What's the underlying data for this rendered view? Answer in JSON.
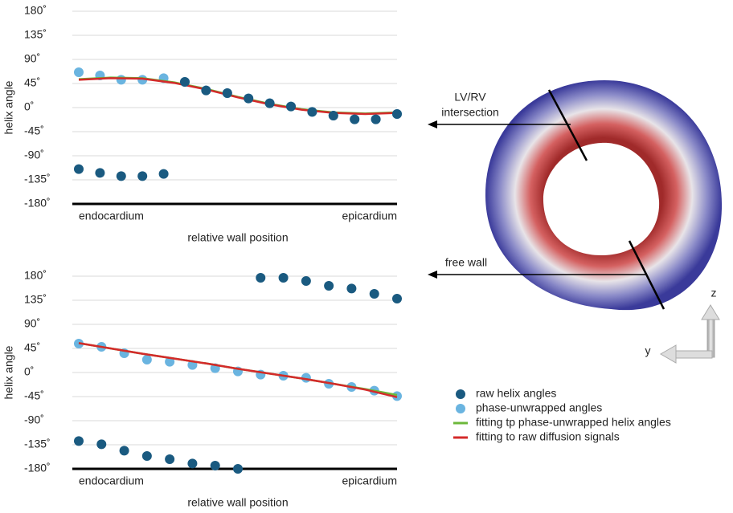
{
  "chart_data": [
    {
      "type": "scatter",
      "ylabel": "helix angle",
      "xlabel": "relative wall position",
      "xlim": [
        0,
        1
      ],
      "xticks": [
        {
          "value": 0,
          "label": "endocardium"
        },
        {
          "value": 1,
          "label": "epicardium"
        }
      ],
      "ylim": [
        -180,
        180
      ],
      "yticks": [
        {
          "value": 180,
          "label": "180˚"
        },
        {
          "value": 135,
          "label": "135˚"
        },
        {
          "value": 90,
          "label": "90˚"
        },
        {
          "value": 45,
          "label": "45˚"
        },
        {
          "value": 0,
          "label": "0˚"
        },
        {
          "value": -45,
          "label": "-45˚"
        },
        {
          "value": -90,
          "label": "-90˚"
        },
        {
          "value": -135,
          "label": "-135˚"
        },
        {
          "value": -180,
          "label": "-180˚"
        }
      ],
      "grid": true,
      "x": [
        0,
        0.0667,
        0.1333,
        0.2,
        0.2667,
        0.3333,
        0.4,
        0.4667,
        0.5333,
        0.6,
        0.6667,
        0.7333,
        0.8,
        0.8667,
        0.9333,
        1
      ],
      "series": [
        {
          "style": "markers",
          "color": "#6ab4e0",
          "values": [
            66,
            60,
            52,
            52,
            55,
            48,
            32,
            27,
            17,
            8,
            2,
            -8,
            -15,
            -22,
            -22,
            -12
          ]
        },
        {
          "style": "line",
          "color": "#6cb83a",
          "x": [
            0,
            0.1,
            0.2,
            0.3,
            0.4,
            0.5,
            0.6,
            0.7,
            0.8,
            0.9,
            1
          ],
          "values": [
            53,
            56,
            55,
            47,
            35,
            20,
            7,
            -3,
            -9,
            -11,
            -9
          ]
        },
        {
          "style": "line",
          "color": "#d42a2a",
          "x": [
            0,
            0.1,
            0.2,
            0.3,
            0.4,
            0.5,
            0.6,
            0.7,
            0.8,
            0.9,
            1
          ],
          "values": [
            52,
            55,
            54,
            46,
            34,
            19,
            6,
            -4,
            -10,
            -12,
            -10
          ]
        },
        {
          "style": "markers",
          "color": "#1a5a80",
          "values": [
            -115,
            -122,
            -128,
            -128,
            -124,
            48,
            32,
            27,
            17,
            8,
            2,
            -8,
            -15,
            -22,
            -22,
            -12
          ]
        }
      ]
    },
    {
      "type": "scatter",
      "ylabel": "helix angle",
      "xlabel": "relative wall position",
      "xlim": [
        0,
        1
      ],
      "xticks": [
        {
          "value": 0,
          "label": "endocardium"
        },
        {
          "value": 1,
          "label": "epicardium"
        }
      ],
      "ylim": [
        -180,
        180
      ],
      "yticks": [
        {
          "value": 180,
          "label": "180˚"
        },
        {
          "value": 135,
          "label": "135˚"
        },
        {
          "value": 90,
          "label": "90˚"
        },
        {
          "value": 45,
          "label": "45˚"
        },
        {
          "value": 0,
          "label": "0˚"
        },
        {
          "value": -45,
          "label": "-45˚"
        },
        {
          "value": -90,
          "label": "-90˚"
        },
        {
          "value": -135,
          "label": "-135˚"
        },
        {
          "value": -180,
          "label": "-180˚"
        }
      ],
      "grid": true,
      "x": [
        0,
        0.0714,
        0.1429,
        0.2143,
        0.2857,
        0.3571,
        0.4286,
        0.5,
        0.5714,
        0.6429,
        0.7143,
        0.7857,
        0.8571,
        0.9286,
        1
      ],
      "series": [
        {
          "name": "raw helix angles",
          "style": "markers",
          "color": "#1a5a80",
          "values": [
            -128,
            -134,
            -146,
            -156,
            -162,
            -170,
            -174,
            -180,
            177,
            177,
            171,
            162,
            157,
            147,
            138
          ]
        },
        {
          "name": "phase-unwrapped angles",
          "style": "markers",
          "color": "#6ab4e0",
          "values": [
            54,
            48,
            36,
            24,
            20,
            14,
            8,
            2,
            -4,
            -6,
            -10,
            -21,
            -27,
            -34,
            -44
          ]
        },
        {
          "name": "fitting tp phase-unwrapped helix angles",
          "style": "line",
          "color": "#6cb83a",
          "x": [
            0,
            0.1,
            0.2,
            0.3,
            0.4,
            0.5,
            0.6,
            0.7,
            0.8,
            0.9,
            1
          ],
          "values": [
            55,
            45,
            35,
            26,
            17,
            7,
            -2,
            -11,
            -21,
            -31,
            -42
          ]
        },
        {
          "name": "fitting to raw diffusion signals",
          "style": "line",
          "color": "#d42a2a",
          "x": [
            0,
            0.1,
            0.2,
            0.3,
            0.4,
            0.5,
            0.6,
            0.7,
            0.8,
            0.9,
            1
          ],
          "values": [
            55,
            45,
            35,
            26,
            17,
            7,
            -2,
            -11,
            -21,
            -32,
            -46
          ]
        }
      ]
    }
  ],
  "image_labels": {
    "lv_rv": "LV/RV",
    "lv_rv_2": "intersection",
    "free_wall": "free wall",
    "axis_z": "z",
    "axis_y": "y"
  }
}
